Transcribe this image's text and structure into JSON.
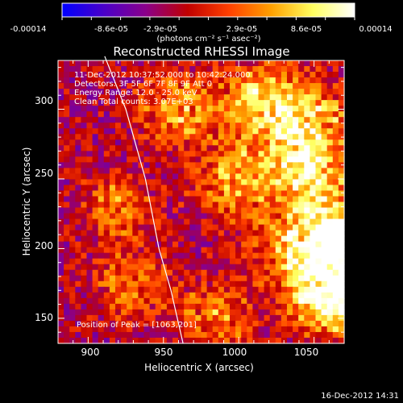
{
  "colorbar": {
    "tick_labels": [
      "-0.00014",
      "-8.6e-05",
      "-2.9e-05",
      "2.9e-05",
      "8.6e-05",
      "0.00014"
    ],
    "units_text": "(photons cm⁻² s⁻¹ asec⁻²)",
    "range": [
      -0.00014,
      0.00014
    ],
    "colors": [
      "#0000ff",
      "#4a00c8",
      "#8a008a",
      "#c00000",
      "#ff4000",
      "#ffa000",
      "#ffff60",
      "#ffffff"
    ]
  },
  "chart_data": {
    "type": "heatmap",
    "title": "Reconstructed RHESSI Image",
    "xlabel": "Heliocentric X (arcsec)",
    "ylabel": "Heliocentric Y (arcsec)",
    "xlim": [
      880,
      1070
    ],
    "ylim": [
      132,
      335
    ],
    "x_ticks": [
      900,
      950,
      1000,
      1050
    ],
    "y_ticks": [
      150,
      200,
      250,
      300
    ],
    "annotations": [
      "11-Dec-2012 10:37:52.000 to 10:42:24.000",
      "Detectors: 3F 5F 6F 7F 8F 9F  Att 0",
      "Energy Range: 12.0 - 25.0 keV",
      "Clean    Total counts: 3.07E+03"
    ],
    "peak_label": "Position of Peak = [1063,201]",
    "peak_position": [
      1063,
      201
    ],
    "limb_curve": [
      [
        911,
        338
      ],
      [
        925,
        300
      ],
      [
        938,
        250
      ],
      [
        947,
        200
      ],
      [
        955,
        170
      ],
      [
        963,
        132
      ]
    ]
  },
  "footer": {
    "timestamp": "16-Dec-2012 14:31"
  }
}
